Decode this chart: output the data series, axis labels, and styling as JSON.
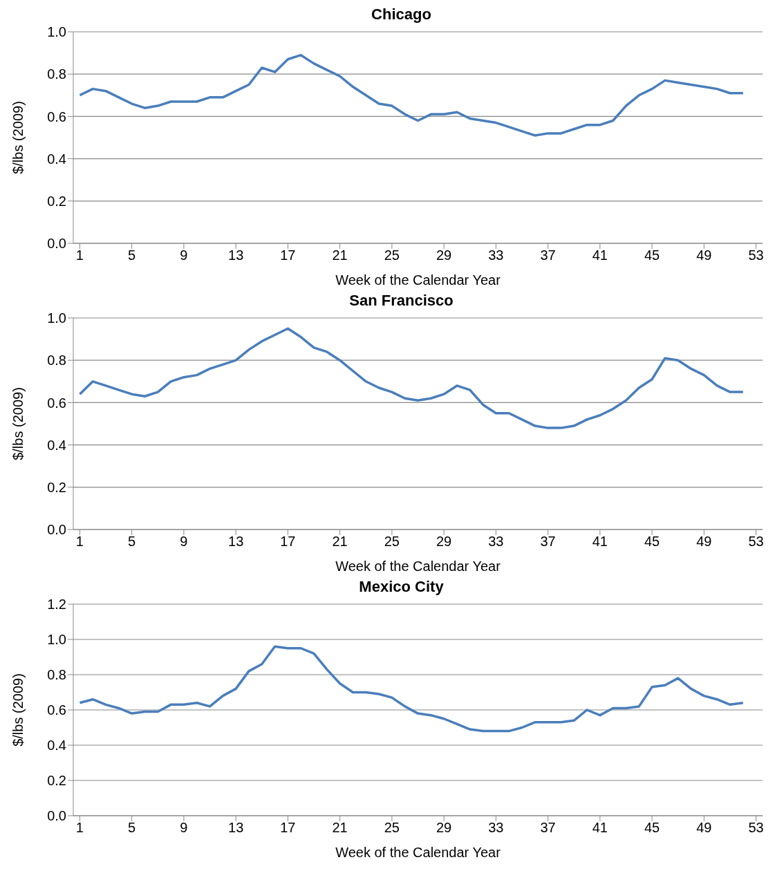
{
  "chart_data": [
    {
      "type": "line",
      "title": "Chicago",
      "xlabel": "Week of the Calendar Year",
      "ylabel": "$/lbs (2009)",
      "grid": "y",
      "marker": "none",
      "legend": false,
      "x": [
        1,
        2,
        3,
        4,
        5,
        6,
        7,
        8,
        9,
        10,
        11,
        12,
        13,
        14,
        15,
        16,
        17,
        18,
        19,
        20,
        21,
        22,
        23,
        24,
        25,
        26,
        27,
        28,
        29,
        30,
        31,
        32,
        33,
        34,
        35,
        36,
        37,
        38,
        39,
        40,
        41,
        42,
        43,
        44,
        45,
        46,
        47,
        48,
        49,
        50,
        51,
        52
      ],
      "xlim": [
        0.5,
        53.5
      ],
      "xticks": [
        1,
        5,
        9,
        13,
        17,
        21,
        25,
        29,
        33,
        37,
        41,
        45,
        49,
        53
      ],
      "ylim": [
        0,
        1
      ],
      "yticks": [
        {
          "value": 0,
          "label": "0.0"
        },
        {
          "value": 0.2,
          "label": "0.2"
        },
        {
          "value": 0.4,
          "label": "0.4"
        },
        {
          "value": 0.6,
          "label": "0.6"
        },
        {
          "value": 0.8,
          "label": "0.8"
        },
        {
          "value": 1,
          "label": "1.0"
        }
      ],
      "series": [
        {
          "color": "#4a7ebb",
          "values": [
            0.7,
            0.73,
            0.72,
            0.69,
            0.66,
            0.64,
            0.65,
            0.67,
            0.67,
            0.67,
            0.69,
            0.69,
            0.72,
            0.75,
            0.83,
            0.81,
            0.87,
            0.89,
            0.85,
            0.82,
            0.79,
            0.74,
            0.7,
            0.66,
            0.65,
            0.61,
            0.58,
            0.61,
            0.61,
            0.62,
            0.59,
            0.58,
            0.57,
            0.55,
            0.53,
            0.51,
            0.52,
            0.52,
            0.54,
            0.56,
            0.56,
            0.58,
            0.65,
            0.7,
            0.73,
            0.77,
            0.76,
            0.75,
            0.74,
            0.73,
            0.71,
            0.71
          ]
        }
      ]
    },
    {
      "type": "line",
      "title": "San Francisco",
      "xlabel": "Week of the Calendar Year",
      "ylabel": "$/lbs (2009)",
      "grid": "y",
      "marker": "none",
      "legend": false,
      "x": [
        1,
        2,
        3,
        4,
        5,
        6,
        7,
        8,
        9,
        10,
        11,
        12,
        13,
        14,
        15,
        16,
        17,
        18,
        19,
        20,
        21,
        22,
        23,
        24,
        25,
        26,
        27,
        28,
        29,
        30,
        31,
        32,
        33,
        34,
        35,
        36,
        37,
        38,
        39,
        40,
        41,
        42,
        43,
        44,
        45,
        46,
        47,
        48,
        49,
        50,
        51,
        52
      ],
      "xlim": [
        0.5,
        53.5
      ],
      "xticks": [
        1,
        5,
        9,
        13,
        17,
        21,
        25,
        29,
        33,
        37,
        41,
        45,
        49,
        53
      ],
      "ylim": [
        0,
        1
      ],
      "yticks": [
        {
          "value": 0,
          "label": "0.0"
        },
        {
          "value": 0.2,
          "label": "0.2"
        },
        {
          "value": 0.4,
          "label": "0.4"
        },
        {
          "value": 0.6,
          "label": "0.6"
        },
        {
          "value": 0.8,
          "label": "0.8"
        },
        {
          "value": 1,
          "label": "1.0"
        }
      ],
      "series": [
        {
          "color": "#4a7ebb",
          "values": [
            0.64,
            0.7,
            0.68,
            0.66,
            0.64,
            0.63,
            0.65,
            0.7,
            0.72,
            0.73,
            0.76,
            0.78,
            0.8,
            0.85,
            0.89,
            0.92,
            0.95,
            0.91,
            0.86,
            0.84,
            0.8,
            0.75,
            0.7,
            0.67,
            0.65,
            0.62,
            0.61,
            0.62,
            0.64,
            0.68,
            0.66,
            0.59,
            0.55,
            0.55,
            0.52,
            0.49,
            0.48,
            0.48,
            0.49,
            0.52,
            0.54,
            0.57,
            0.61,
            0.67,
            0.71,
            0.81,
            0.8,
            0.76,
            0.73,
            0.68,
            0.65,
            0.65
          ]
        }
      ]
    },
    {
      "type": "line",
      "title": "Mexico City",
      "xlabel": "Week of the Calendar Year",
      "ylabel": "$/lbs (2009)",
      "grid": "y",
      "marker": "none",
      "legend": false,
      "x": [
        1,
        2,
        3,
        4,
        5,
        6,
        7,
        8,
        9,
        10,
        11,
        12,
        13,
        14,
        15,
        16,
        17,
        18,
        19,
        20,
        21,
        22,
        23,
        24,
        25,
        26,
        27,
        28,
        29,
        30,
        31,
        32,
        33,
        34,
        35,
        36,
        37,
        38,
        39,
        40,
        41,
        42,
        43,
        44,
        45,
        46,
        47,
        48,
        49,
        50,
        51,
        52
      ],
      "xlim": [
        0.5,
        53.5
      ],
      "xticks": [
        1,
        5,
        9,
        13,
        17,
        21,
        25,
        29,
        33,
        37,
        41,
        45,
        49,
        53
      ],
      "ylim": [
        0,
        1.2
      ],
      "yticks": [
        {
          "value": 0,
          "label": "0.0"
        },
        {
          "value": 0.2,
          "label": "0.2"
        },
        {
          "value": 0.4,
          "label": "0.4"
        },
        {
          "value": 0.6,
          "label": "0.6"
        },
        {
          "value": 0.8,
          "label": "0.8"
        },
        {
          "value": 1,
          "label": "1.0"
        },
        {
          "value": 1.2,
          "label": "1.2"
        }
      ],
      "series": [
        {
          "color": "#4a7ebb",
          "values": [
            0.64,
            0.66,
            0.63,
            0.61,
            0.58,
            0.59,
            0.59,
            0.63,
            0.63,
            0.64,
            0.62,
            0.68,
            0.72,
            0.82,
            0.86,
            0.96,
            0.95,
            0.95,
            0.92,
            0.83,
            0.75,
            0.7,
            0.7,
            0.69,
            0.67,
            0.62,
            0.58,
            0.57,
            0.55,
            0.52,
            0.49,
            0.48,
            0.48,
            0.48,
            0.5,
            0.53,
            0.53,
            0.53,
            0.54,
            0.6,
            0.57,
            0.61,
            0.61,
            0.62,
            0.73,
            0.74,
            0.78,
            0.72,
            0.68,
            0.66,
            0.63,
            0.64
          ]
        }
      ]
    }
  ]
}
